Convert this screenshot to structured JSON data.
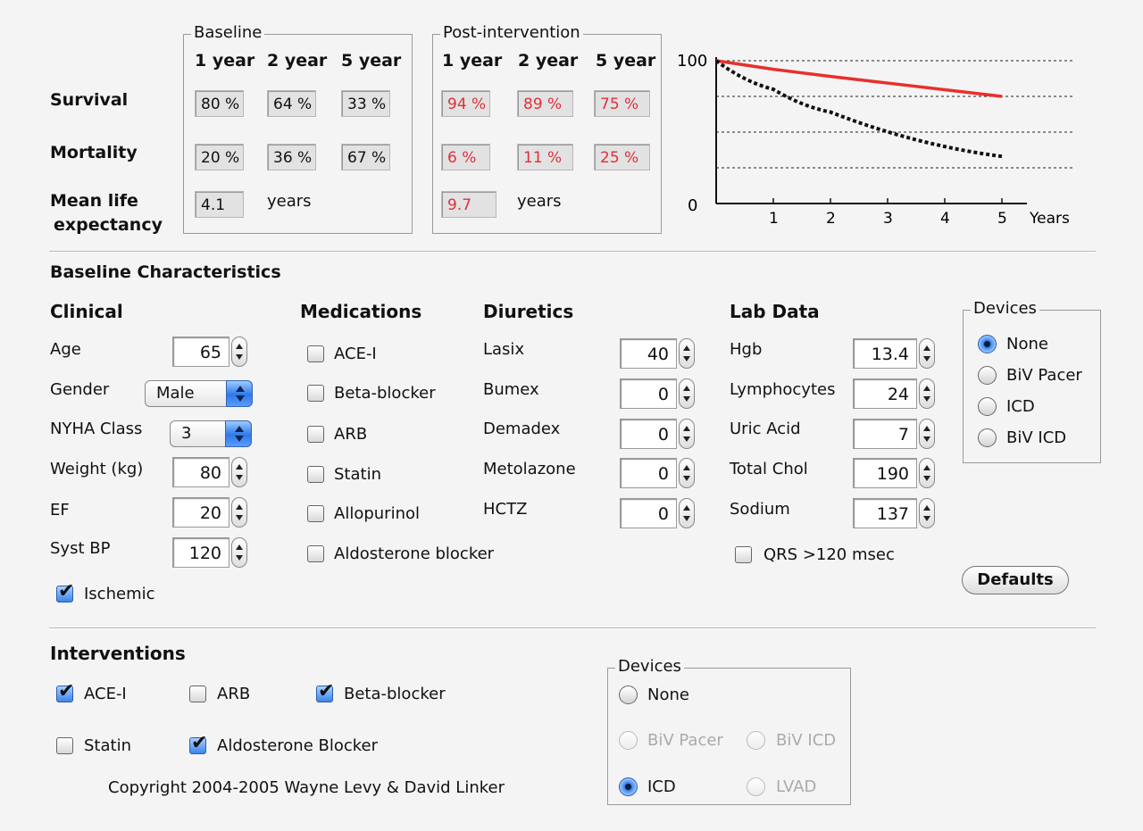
{
  "results": {
    "baseline": {
      "legend": "Baseline",
      "years": [
        "1 year",
        "2 year",
        "5 year"
      ],
      "survival": [
        "80 %",
        "64 %",
        "33 %"
      ],
      "mortality": [
        "20 %",
        "36 %",
        "67 %"
      ],
      "life": "4.1",
      "life_unit": "years"
    },
    "post": {
      "legend": "Post-intervention",
      "years": [
        "1 year",
        "2 year",
        "5 year"
      ],
      "survival": [
        "94 %",
        "89 %",
        "75 %"
      ],
      "mortality": [
        "6 %",
        "11 %",
        "25 %"
      ],
      "life": "9.7",
      "life_unit": "years"
    },
    "rows": {
      "survival": "Survival",
      "mortality": "Mortality",
      "life1": "Mean life",
      "life2": "expectancy"
    }
  },
  "chart_data": {
    "type": "line",
    "y_top_label": "100",
    "y_bottom_label": "0",
    "x_ticks": [
      "1",
      "2",
      "3",
      "4",
      "5"
    ],
    "xlabel": "Years",
    "ylim": [
      0,
      100
    ],
    "series": [
      {
        "color": "#e8302c",
        "style": "solid",
        "x": [
          0,
          1,
          2,
          5
        ],
        "y": [
          100,
          94,
          89,
          75
        ]
      },
      {
        "color": "#111111",
        "style": "dotted",
        "x": [
          0,
          1,
          2,
          5
        ],
        "y": [
          100,
          80,
          64,
          33
        ]
      }
    ],
    "gridlines_y": [
      75,
      50,
      25
    ]
  },
  "baseline_section": "Baseline Characteristics",
  "clinical": {
    "header": "Clinical",
    "age_label": "Age",
    "age": "65",
    "gender_label": "Gender",
    "gender": "Male",
    "nyha_label": "NYHA Class",
    "nyha": "3",
    "weight_label": "Weight (kg)",
    "weight": "80",
    "ef_label": "EF",
    "ef": "20",
    "sbp_label": "Syst BP",
    "sbp": "120",
    "ischemic": "Ischemic"
  },
  "medications": {
    "header": "Medications",
    "items": [
      "ACE-I",
      "Beta-blocker",
      "ARB",
      "Statin",
      "Allopurinol",
      "Aldosterone blocker"
    ]
  },
  "diuretics": {
    "header": "Diuretics",
    "items": [
      {
        "label": "Lasix",
        "value": "40"
      },
      {
        "label": "Bumex",
        "value": "0"
      },
      {
        "label": "Demadex",
        "value": "0"
      },
      {
        "label": "Metolazone",
        "value": "0"
      },
      {
        "label": "HCTZ",
        "value": "0"
      }
    ]
  },
  "lab": {
    "header": "Lab Data",
    "items": [
      {
        "label": "Hgb",
        "value": "13.4"
      },
      {
        "label": "Lymphocytes",
        "value": "24"
      },
      {
        "label": "Uric Acid",
        "value": "7"
      },
      {
        "label": "Total Chol",
        "value": "190"
      },
      {
        "label": "Sodium",
        "value": "137"
      }
    ],
    "qrs": "QRS >120 msec"
  },
  "devices_top": {
    "legend": "Devices",
    "items": [
      "None",
      "BiV Pacer",
      "ICD",
      "BiV ICD"
    ]
  },
  "defaults_button": "Defaults",
  "interventions": {
    "header": "Interventions",
    "ace": "ACE-I",
    "arb": "ARB",
    "beta": "Beta-blocker",
    "statin": "Statin",
    "aldo": "Aldosterone Blocker"
  },
  "devices_bottom": {
    "legend": "Devices",
    "none": "None",
    "biv_pacer": "BiV Pacer",
    "biv_icd": "BiV ICD",
    "icd": "ICD",
    "lvad": "LVAD"
  },
  "copyright": "Copyright 2004-2005 Wayne Levy & David Linker"
}
